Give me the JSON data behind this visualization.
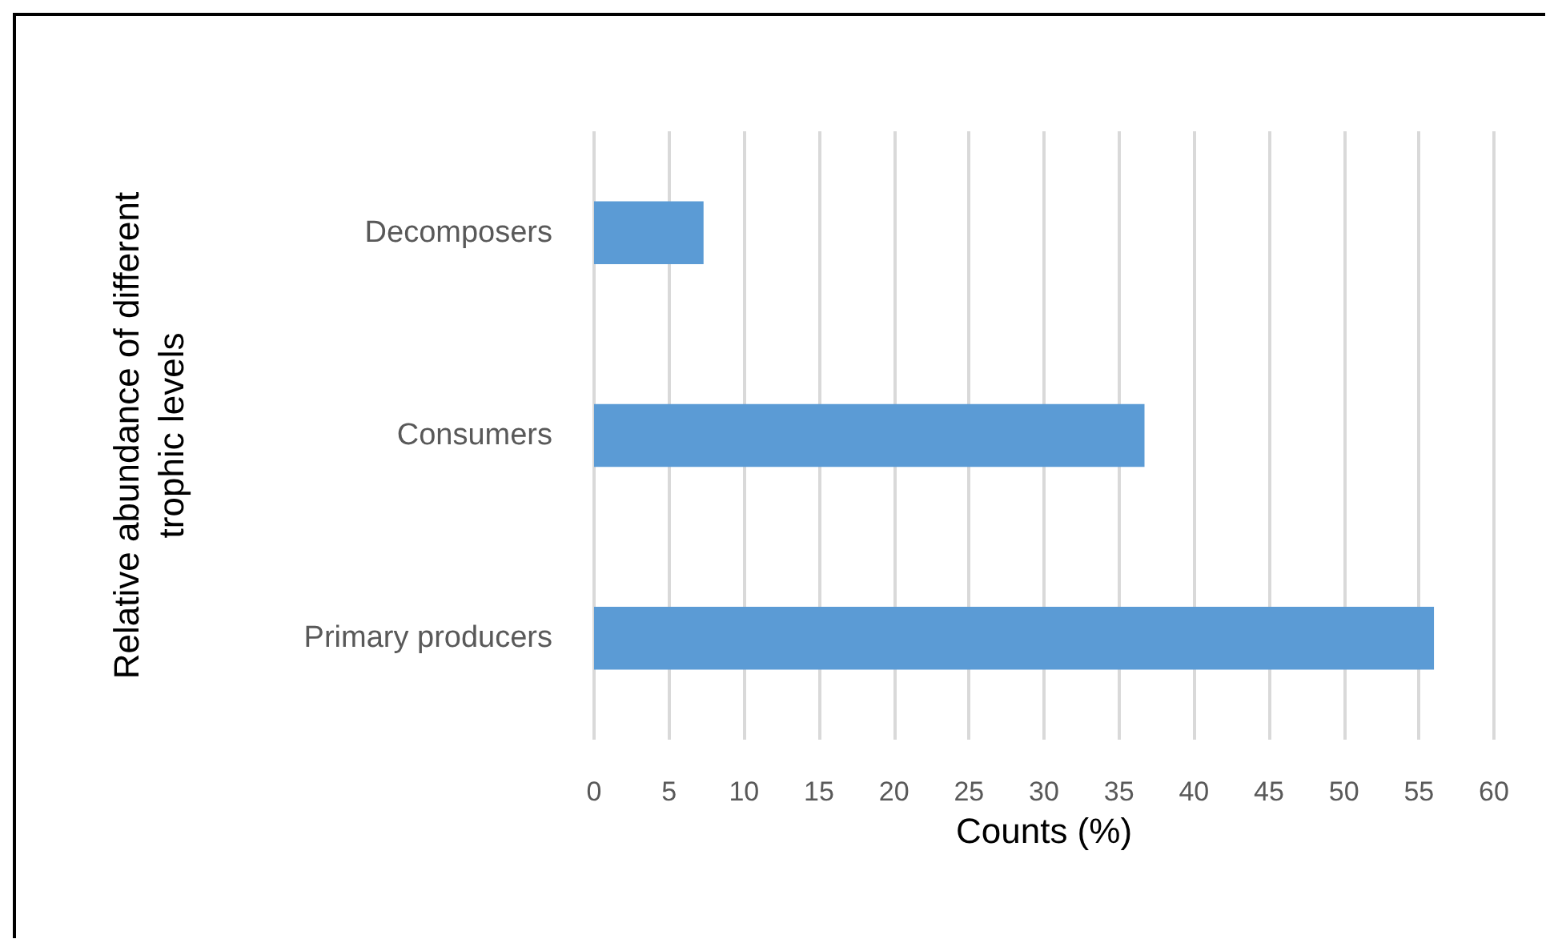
{
  "chart_data": {
    "type": "bar",
    "orientation": "horizontal",
    "xlabel": "Counts (%)",
    "ylabel": "Relative abundance of different\ntrophic levels",
    "categories": [
      "Decomposers",
      "Consumers",
      "Primary producers"
    ],
    "values": [
      7.3,
      36.7,
      56.0
    ],
    "color": "#5b9bd5",
    "xlim": [
      0,
      60
    ],
    "xticks": [
      0,
      5,
      10,
      15,
      20,
      25,
      30,
      35,
      40,
      45,
      50,
      55,
      60
    ],
    "grid": "x"
  }
}
